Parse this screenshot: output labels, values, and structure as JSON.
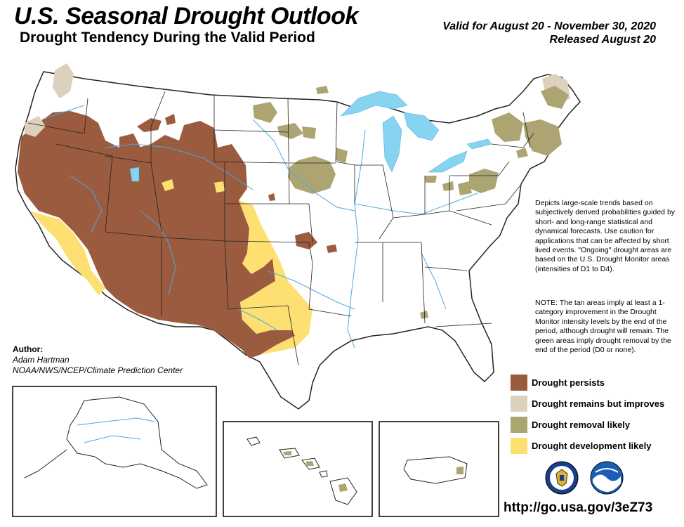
{
  "header": {
    "title": "U.S. Seasonal Drought Outlook",
    "subtitle": "Drought Tendency During the Valid Period",
    "valid": "Valid for August 20 - November 30, 2020",
    "released": "Released August 20"
  },
  "description": {
    "para1": "Depicts large-scale trends based on subjectively derived probabilities guided by short- and long-range statistical and dynamical forecasts. Use caution for applications that can be affected by short lived events. \"Ongoing\" drought areas are based on the U.S. Drought Monitor areas (intensities of D1 to D4).",
    "para2": "NOTE: The tan areas imply at least a 1-category improvement in the Drought Monitor intensity levels by the end of the period, although drought will remain. The green areas imply drought removal by the end of the period (D0 or none)."
  },
  "author": {
    "label": "Author:",
    "name": "Adam Hartman",
    "org": "NOAA/NWS/NCEP/Climate Prediction Center"
  },
  "legend": [
    {
      "label": "Drought persists",
      "color": "#9b5b3f"
    },
    {
      "label": "Drought remains but improves",
      "color": "#dcd1bc"
    },
    {
      "label": "Drought removal likely",
      "color": "#aca572"
    },
    {
      "label": "Drought development likely",
      "color": "#fde071"
    }
  ],
  "colors": {
    "water": "#86d4f0",
    "rivers": "#4ca8e0",
    "borders": "#222222"
  },
  "logos": [
    "department-of-commerce-seal-icon",
    "noaa-logo-icon"
  ],
  "url": "http://go.usa.gov/3eZ73"
}
